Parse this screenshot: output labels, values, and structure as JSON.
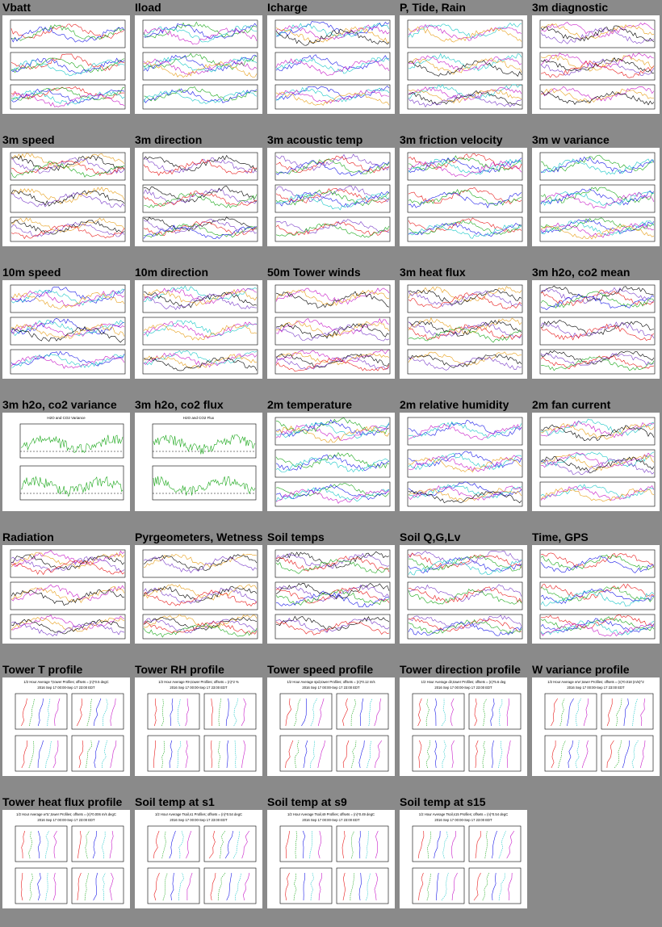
{
  "page": {
    "background": "#8a8a8a",
    "columns": 5
  },
  "colors": [
    "#e81c1c",
    "#1ca81c",
    "#1c1ce8",
    "#1cc8c8",
    "#c81cc8",
    "#e8a01c",
    "#000000",
    "#7a3cc8"
  ],
  "panels": [
    {
      "title": "Vbatt",
      "kind": "series3"
    },
    {
      "title": "Iload",
      "kind": "series3"
    },
    {
      "title": "Icharge",
      "kind": "series3"
    },
    {
      "title": "P, Tide, Rain",
      "kind": "series3"
    },
    {
      "title": "3m diagnostic",
      "kind": "series3"
    },
    {
      "title": "3m speed",
      "kind": "series3"
    },
    {
      "title": "3m direction",
      "kind": "series3"
    },
    {
      "title": "3m acoustic temp",
      "kind": "series3"
    },
    {
      "title": "3m friction velocity",
      "kind": "series3"
    },
    {
      "title": "3m w variance",
      "kind": "series3"
    },
    {
      "title": "10m speed",
      "kind": "series3"
    },
    {
      "title": "10m direction",
      "kind": "series3"
    },
    {
      "title": "50m Tower winds",
      "kind": "series3"
    },
    {
      "title": "3m heat flux",
      "kind": "series3"
    },
    {
      "title": "3m h2o, co2 mean",
      "kind": "series3"
    },
    {
      "title": "3m h2o, co2 variance",
      "kind": "series2",
      "subtitle": "H2O and CO2 Variance"
    },
    {
      "title": "3m h2o, co2 flux",
      "kind": "series2",
      "subtitle": "H2O and CO2 Flux"
    },
    {
      "title": "2m temperature",
      "kind": "series3"
    },
    {
      "title": "2m relative humidity",
      "kind": "series3"
    },
    {
      "title": "2m fan current",
      "kind": "series3"
    },
    {
      "title": "Radiation",
      "kind": "series3"
    },
    {
      "title": "Pyrgeometers, Wetness",
      "kind": "series3"
    },
    {
      "title": "Soil temps",
      "kind": "series3"
    },
    {
      "title": "Soil Q,G,Lv",
      "kind": "series3"
    },
    {
      "title": "Time, GPS",
      "kind": "series3"
    },
    {
      "title": "Tower T profile",
      "kind": "profile",
      "subtitle": "1/2 Hour Average T,tower Profiles; offsets = (n)*0.5 degC",
      "date": "2016 Sep 17 00:00-Sep 17 23:00 EDT"
    },
    {
      "title": "Tower RH profile",
      "kind": "profile",
      "subtitle": "1/2 Hour Average RH,tower Profiles; offsets = (n)*2 %",
      "date": "2016 Sep 17 00:00-Sep 17 23:00 EDT"
    },
    {
      "title": "Tower speed profile",
      "kind": "profile",
      "subtitle": "1/2 Hour Average spd,tower Profiles; offsets = (n)*0.12 m/s",
      "date": "2016 Sep 17 00:00-Sep 17 23:00 EDT"
    },
    {
      "title": "Tower direction profile",
      "kind": "profile",
      "subtitle": "1/2 Hour Average dir,tower Profiles; offsets = (n)*5.6 deg",
      "date": "2016 Sep 17 00:00-Sep 17 23:00 EDT"
    },
    {
      "title": "W variance profile",
      "kind": "profile",
      "subtitle": "1/2 Hour Average w'w',tower Profiles; offsets = (n)*0.018 (m/s)^2",
      "date": "2016 Sep 17 00:00-Sep 17 23:00 EDT"
    },
    {
      "title": "Tower heat flux profile",
      "kind": "profile",
      "subtitle": "1/2 Hour Average w'tc',tower Profiles; offsets = (n)*0.006 m/s degC",
      "date": "2016 Sep 17 00:00-Sep 17 23:00 EDT"
    },
    {
      "title": "Soil temp at s1",
      "kind": "profile",
      "subtitle": "1/2 Hour Average Tsoil,s1 Profiles; offsets = (n)*0.54 degC",
      "date": "2016 Sep 17 00:00-Sep 17 23:00 EDT"
    },
    {
      "title": "Soil temp at s9",
      "kind": "profile",
      "subtitle": "1/2 Hour Average Tsoil,s9 Profiles; offsets = (n)*0.49 degC",
      "date": "2016 Sep 17 00:00-Sep 17 23:00 EDT"
    },
    {
      "title": "Soil temp at s15",
      "kind": "profile",
      "subtitle": "1/2 Hour Average Tsoil,s15 Profiles; offsets = (n)*0.54 degC",
      "date": "2016 Sep 17 00:00-Sep 17 23:00 EDT"
    }
  ]
}
